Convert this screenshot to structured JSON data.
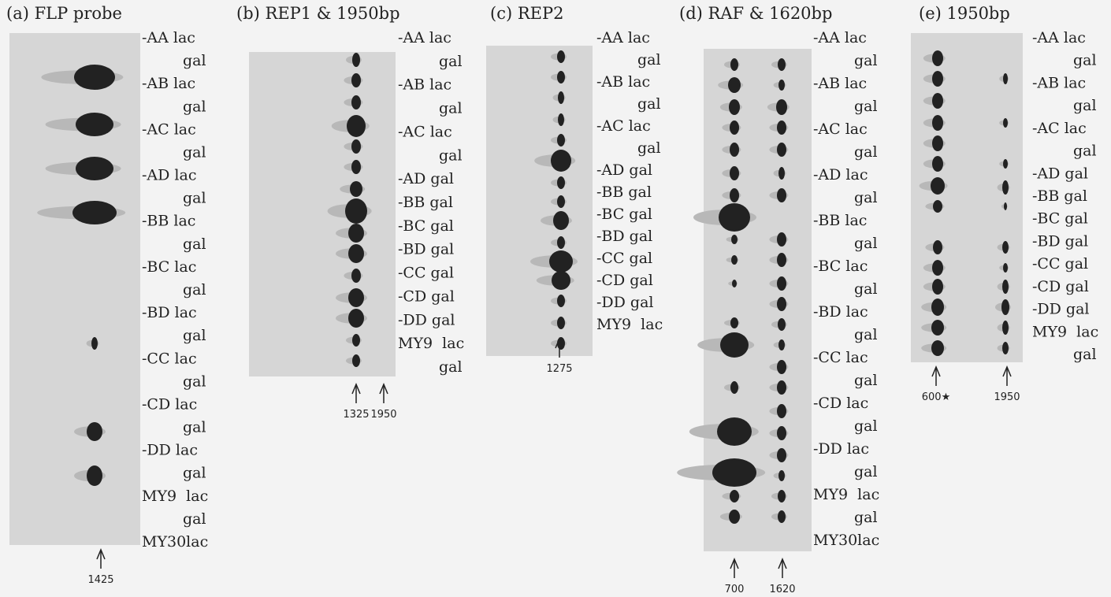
{
  "panels": [
    {
      "title": "(a) FLP probe",
      "labels": [
        "-AA lac",
        "gal",
        "-AB lac",
        "gal",
        "-AC lac",
        "gal",
        "-AD lac",
        "gal",
        "-BB lac",
        "gal",
        "-BC lac",
        "gal",
        "-BD lac",
        "gal",
        "-CC lac",
        "gal",
        "-CD lac",
        "gal",
        "-DD lac",
        "gal",
        "MY9  lac",
        "gal",
        "MY30lac"
      ],
      "arrows": [
        "1425"
      ]
    },
    {
      "title": "(b) REP1 & 1950bp",
      "labels": [
        "-AA lac",
        "gal",
        "-AB lac",
        "gal",
        "-AC lac",
        "gal",
        "-AD gal",
        "-BB gal",
        "-BC gal",
        "-BD gal",
        "-CC gal",
        "-CD gal",
        "-DD gal",
        "MY9  lac",
        "gal"
      ],
      "arrows": [
        "1325",
        "1950"
      ]
    },
    {
      "title": "(c) REP2",
      "labels": [
        "-AA lac",
        "gal",
        "-AB lac",
        "gal",
        "-AC lac",
        "gal",
        "-AD gal",
        "-BB gal",
        "-BC gal",
        "-BD gal",
        "-CC gal",
        "-CD gal",
        "-DD gal",
        "MY9  lac"
      ],
      "arrows": [
        "1275"
      ]
    },
    {
      "title": "(d) RAF & 1620bp",
      "labels": [
        "-AA lac",
        "gal",
        "-AB lac",
        "gal",
        "-AC lac",
        "gal",
        "-AD lac",
        "gal",
        "-BB lac",
        "gal",
        "-BC lac",
        "gal",
        "-BD lac",
        "gal",
        "-CC lac",
        "gal",
        "-CD lac",
        "gal",
        "-DD lac",
        "gal",
        "MY9  lac",
        "gal",
        "MY30lac"
      ],
      "arrows": [
        "700",
        "1620"
      ]
    },
    {
      "title": "(e) 1950bp",
      "labels": [
        "-AA lac",
        "gal",
        "-AB lac",
        "gal",
        "-AC lac",
        "gal",
        "-AD gal",
        "-BB gal",
        "-BC gal",
        "-BD gal",
        "-CC gal",
        "-CD gal",
        "-DD gal",
        "MY9  lac",
        "gal"
      ],
      "arrows": [
        "600★",
        "1950"
      ]
    }
  ]
}
